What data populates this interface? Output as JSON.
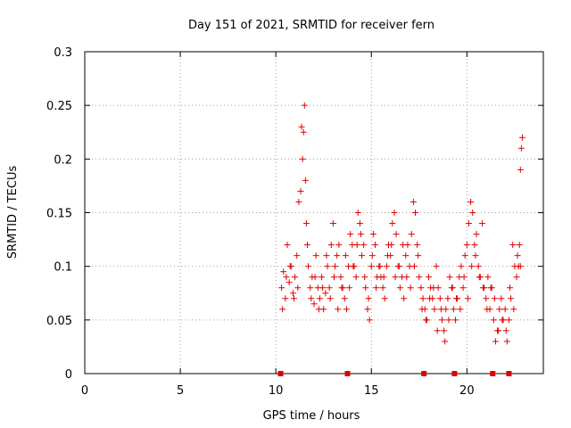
{
  "chart_data": {
    "type": "scatter",
    "title": "Day 151 of 2021, SRMTID for receiver fern",
    "xlabel": "GPS time / hours",
    "ylabel": "SRMTID / TECUs",
    "xlim": [
      0,
      24
    ],
    "ylim": [
      0,
      0.3
    ],
    "xticks": [
      "0",
      "5",
      "10",
      "15",
      "20"
    ],
    "yticks": [
      "0",
      "0.05",
      "0.1",
      "0.15",
      "0.2",
      "0.25",
      "0.3"
    ],
    "grid": true,
    "marker": "+",
    "color": "#e00000",
    "zero_markers_x": [
      10.25,
      13.75,
      17.75,
      19.35,
      21.35,
      22.2
    ],
    "series": [
      {
        "name": "SRMTID",
        "x": [
          10.3,
          10.4,
          10.5,
          10.6,
          10.7,
          10.8,
          10.9,
          11.0,
          11.1,
          11.2,
          11.3,
          11.4,
          11.45,
          11.5,
          11.55,
          11.6,
          11.7,
          11.8,
          11.9,
          12.0,
          12.1,
          12.2,
          12.3,
          12.4,
          12.5,
          12.6,
          12.7,
          12.8,
          12.9,
          13.0,
          13.1,
          13.2,
          13.3,
          13.4,
          13.5,
          13.6,
          13.7,
          13.8,
          13.9,
          14.0,
          14.1,
          14.2,
          14.3,
          14.4,
          14.5,
          14.6,
          14.7,
          14.8,
          14.9,
          15.0,
          15.1,
          15.2,
          15.3,
          15.4,
          15.5,
          15.6,
          15.7,
          15.8,
          15.9,
          16.0,
          16.1,
          16.2,
          16.3,
          16.4,
          16.5,
          16.6,
          16.7,
          16.8,
          16.9,
          17.0,
          17.1,
          17.2,
          17.3,
          17.4,
          17.5,
          17.6,
          17.7,
          17.8,
          17.9,
          18.0,
          18.1,
          18.2,
          18.3,
          18.4,
          18.5,
          18.6,
          18.7,
          18.8,
          18.9,
          19.0,
          19.1,
          19.2,
          19.3,
          19.4,
          19.5,
          19.6,
          19.7,
          19.8,
          19.9,
          20.0,
          20.1,
          20.2,
          20.3,
          20.4,
          20.5,
          20.6,
          20.7,
          20.8,
          20.9,
          21.0,
          21.1,
          21.2,
          21.3,
          21.4,
          21.5,
          21.6,
          21.7,
          21.8,
          21.9,
          22.0,
          22.1,
          22.2,
          22.3,
          22.4,
          22.5,
          22.6,
          22.7,
          22.8,
          22.85,
          22.9,
          10.35,
          10.55,
          10.75,
          10.95,
          11.15,
          11.35,
          11.65,
          11.85,
          12.05,
          12.25,
          12.45,
          12.65,
          12.85,
          13.05,
          13.25,
          13.45,
          13.65,
          13.85,
          14.05,
          14.25,
          14.45,
          14.65,
          14.85,
          15.05,
          15.25,
          15.45,
          15.65,
          15.85,
          16.05,
          16.25,
          16.45,
          16.65,
          16.85,
          17.05,
          17.25,
          17.45,
          17.65,
          17.85,
          18.05,
          18.25,
          18.45,
          18.65,
          18.85,
          19.05,
          19.25,
          19.45,
          19.65,
          19.85,
          20.05,
          20.25,
          20.45,
          20.65,
          20.85,
          21.05,
          21.25,
          21.45,
          21.65,
          21.85,
          22.05,
          22.25,
          22.45,
          22.65,
          22.75,
          22.8
        ],
        "y": [
          0.08,
          0.095,
          0.07,
          0.12,
          0.085,
          0.1,
          0.075,
          0.09,
          0.11,
          0.16,
          0.17,
          0.2,
          0.225,
          0.25,
          0.18,
          0.14,
          0.1,
          0.08,
          0.09,
          0.065,
          0.11,
          0.08,
          0.07,
          0.09,
          0.06,
          0.075,
          0.1,
          0.08,
          0.12,
          0.14,
          0.1,
          0.11,
          0.12,
          0.09,
          0.08,
          0.07,
          0.06,
          0.1,
          0.13,
          0.12,
          0.1,
          0.09,
          0.15,
          0.14,
          0.11,
          0.12,
          0.08,
          0.06,
          0.05,
          0.1,
          0.13,
          0.12,
          0.09,
          0.1,
          0.09,
          0.08,
          0.07,
          0.1,
          0.12,
          0.11,
          0.14,
          0.15,
          0.13,
          0.1,
          0.08,
          0.09,
          0.07,
          0.11,
          0.12,
          0.1,
          0.13,
          0.16,
          0.15,
          0.12,
          0.09,
          0.08,
          0.07,
          0.06,
          0.05,
          0.09,
          0.08,
          0.07,
          0.06,
          0.1,
          0.08,
          0.07,
          0.05,
          0.04,
          0.06,
          0.07,
          0.09,
          0.08,
          0.06,
          0.05,
          0.07,
          0.09,
          0.1,
          0.08,
          0.11,
          0.12,
          0.14,
          0.16,
          0.15,
          0.12,
          0.13,
          0.1,
          0.09,
          0.14,
          0.08,
          0.07,
          0.09,
          0.06,
          0.08,
          0.05,
          0.03,
          0.04,
          0.06,
          0.07,
          0.05,
          0.06,
          0.03,
          0.05,
          0.07,
          0.12,
          0.1,
          0.09,
          0.1,
          0.19,
          0.21,
          0.22,
          0.06,
          0.09,
          0.1,
          0.07,
          0.08,
          0.23,
          0.12,
          0.07,
          0.09,
          0.06,
          0.08,
          0.11,
          0.07,
          0.09,
          0.06,
          0.08,
          0.11,
          0.08,
          0.1,
          0.12,
          0.13,
          0.09,
          0.07,
          0.11,
          0.08,
          0.1,
          0.09,
          0.11,
          0.12,
          0.09,
          0.1,
          0.12,
          0.09,
          0.08,
          0.1,
          0.11,
          0.06,
          0.05,
          0.07,
          0.08,
          0.04,
          0.06,
          0.03,
          0.05,
          0.08,
          0.07,
          0.06,
          0.09,
          0.07,
          0.1,
          0.11,
          0.09,
          0.08,
          0.06,
          0.08,
          0.07,
          0.04,
          0.05,
          0.04,
          0.08,
          0.06,
          0.11,
          0.12,
          0.1
        ]
      }
    ]
  }
}
